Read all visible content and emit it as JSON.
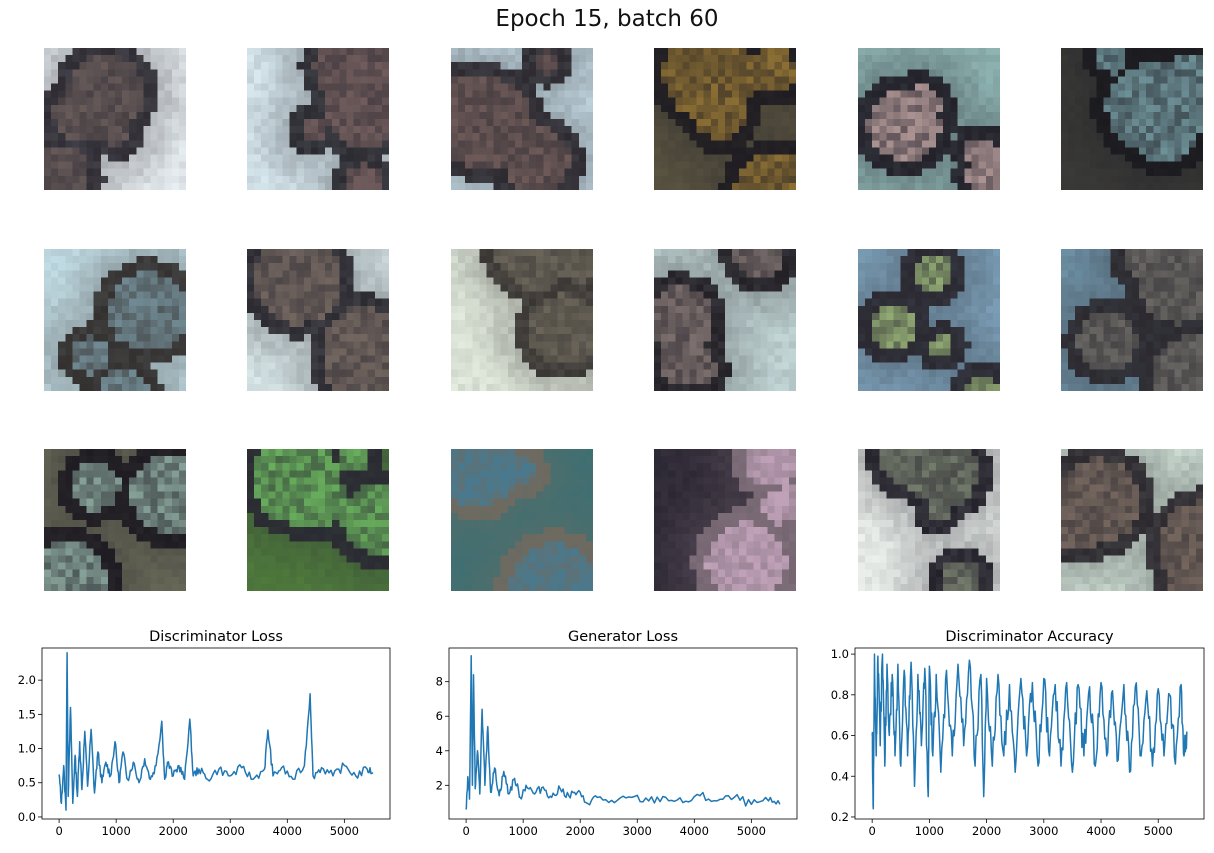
{
  "figure": {
    "title": "Epoch 15, batch 60"
  },
  "samples": {
    "rows": 3,
    "cols": 6,
    "tiles": [
      {
        "bg": "#e9f0f4",
        "fg": "#2e2b33",
        "accent": "#7a6a66"
      },
      {
        "bg": "#d7e8ee",
        "fg": "#2b2a31",
        "accent": "#8a6e6c"
      },
      {
        "bg": "#c9dfe9",
        "fg": "#2d2a30",
        "accent": "#836a66"
      },
      {
        "bg": "#5a5441",
        "fg": "#1f1d22",
        "accent": "#b08a3a"
      },
      {
        "bg": "#8fb5b3",
        "fg": "#23212a",
        "accent": "#d9b9b5"
      },
      {
        "bg": "#3a3a38",
        "fg": "#1b1a1f",
        "accent": "#8ab8c0"
      },
      {
        "bg": "#c2dde5",
        "fg": "#33302f",
        "accent": "#86a8b4"
      },
      {
        "bg": "#dbeaec",
        "fg": "#2c2a31",
        "accent": "#8a7a6f"
      },
      {
        "bg": "#e3ecdf",
        "fg": "#3a3633",
        "accent": "#7a7466"
      },
      {
        "bg": "#c4d8d8",
        "fg": "#232026",
        "accent": "#9a8a86"
      },
      {
        "bg": "#7ea3bc",
        "fg": "#2a2830",
        "accent": "#b4d68a"
      },
      {
        "bg": "#6f93a8",
        "fg": "#2c2a2f",
        "accent": "#7d7a74"
      },
      {
        "bg": "#6b6b5a",
        "fg": "#1e1c22",
        "accent": "#a9cdbf"
      },
      {
        "bg": "#4f7c3c",
        "fg": "#2a2a33",
        "accent": "#7cd96a"
      },
      {
        "bg": "#3e6f72",
        "fg": "#6f6a60",
        "accent": "#3a7fa0"
      },
      {
        "bg": "#2b2733",
        "fg": "#7d6d78",
        "accent": "#d7b3cf"
      },
      {
        "bg": "#eef3ef",
        "fg": "#23212a",
        "accent": "#8f9a82"
      },
      {
        "bg": "#cfe0d6",
        "fg": "#2d2a2f",
        "accent": "#8d7b6e"
      }
    ]
  },
  "chart_data": [
    {
      "type": "line",
      "title": "Discriminator Loss",
      "xlim": [
        -300,
        5800
      ],
      "ylim": [
        -0.03,
        2.47
      ],
      "xticks": [
        0,
        1000,
        2000,
        3000,
        4000,
        5000
      ],
      "yticks": [
        0.0,
        0.5,
        1.0,
        1.5,
        2.0
      ],
      "ytick_labels": [
        "0.0",
        "0.5",
        "1.0",
        "1.5",
        "2.0"
      ],
      "color": "#1f77b4",
      "x": [
        0,
        40,
        80,
        120,
        140,
        160,
        200,
        240,
        280,
        320,
        360,
        400,
        450,
        500,
        560,
        620,
        680,
        750,
        820,
        900,
        980,
        1050,
        1120,
        1200,
        1300,
        1400,
        1500,
        1600,
        1700,
        1800,
        1850,
        1900,
        2000,
        2100,
        2200,
        2290,
        2350,
        2450,
        2600,
        2800,
        3000,
        3200,
        3400,
        3600,
        3660,
        3750,
        3900,
        4100,
        4300,
        4400,
        4450,
        4600,
        4800,
        5000,
        5200,
        5400,
        5500
      ],
      "y": [
        0.62,
        0.2,
        0.75,
        0.1,
        2.4,
        0.3,
        1.6,
        0.2,
        0.9,
        0.3,
        1.1,
        0.4,
        1.25,
        0.45,
        1.28,
        0.35,
        0.95,
        0.5,
        0.8,
        0.6,
        1.1,
        0.5,
        0.95,
        0.55,
        0.8,
        0.5,
        0.85,
        0.55,
        0.75,
        1.4,
        0.55,
        0.8,
        0.6,
        0.75,
        0.55,
        1.43,
        0.6,
        0.7,
        0.55,
        0.7,
        0.6,
        0.72,
        0.55,
        0.7,
        1.27,
        0.6,
        0.72,
        0.55,
        0.75,
        1.8,
        0.6,
        0.72,
        0.6,
        0.75,
        0.6,
        0.7,
        0.65
      ]
    },
    {
      "type": "line",
      "title": "Generator Loss",
      "xlim": [
        -300,
        5800
      ],
      "ylim": [
        0.05,
        9.95
      ],
      "xticks": [
        0,
        1000,
        2000,
        3000,
        4000,
        5000
      ],
      "yticks": [
        2,
        4,
        6,
        8
      ],
      "ytick_labels": [
        "2",
        "4",
        "6",
        "8"
      ],
      "color": "#1f77b4",
      "x": [
        0,
        30,
        60,
        90,
        110,
        130,
        160,
        200,
        240,
        280,
        330,
        380,
        430,
        500,
        580,
        660,
        750,
        850,
        950,
        1050,
        1200,
        1350,
        1500,
        1650,
        1800,
        1950,
        2100,
        2300,
        2600,
        2900,
        3200,
        3500,
        3800,
        4100,
        4400,
        4700,
        5000,
        5300,
        5500
      ],
      "y": [
        0.6,
        2.5,
        1.2,
        9.5,
        2.0,
        8.4,
        1.8,
        4.0,
        1.5,
        6.4,
        2.0,
        5.4,
        1.6,
        3.0,
        1.4,
        2.8,
        1.5,
        2.4,
        1.3,
        2.0,
        1.5,
        1.9,
        1.3,
        1.8,
        1.4,
        1.6,
        1.0,
        1.3,
        1.0,
        1.3,
        1.1,
        1.3,
        1.0,
        1.4,
        1.1,
        1.3,
        0.9,
        1.1,
        0.9
      ]
    },
    {
      "type": "line",
      "title": "Discriminator Accuracy",
      "xlim": [
        -300,
        5800
      ],
      "ylim": [
        0.19,
        1.03
      ],
      "xticks": [
        0,
        1000,
        2000,
        3000,
        4000,
        5000
      ],
      "yticks": [
        0.2,
        0.4,
        0.6,
        0.8,
        1.0
      ],
      "ytick_labels": [
        "0.2",
        "0.4",
        "0.6",
        "0.8",
        "1.0"
      ],
      "color": "#1f77b4",
      "x": [
        0,
        20,
        40,
        70,
        100,
        140,
        180,
        220,
        260,
        300,
        350,
        400,
        450,
        500,
        560,
        620,
        680,
        740,
        800,
        860,
        920,
        980,
        1000,
        1060,
        1120,
        1200,
        1300,
        1400,
        1500,
        1600,
        1700,
        1800,
        1900,
        1950,
        2000,
        2100,
        2200,
        2300,
        2400,
        2500,
        2600,
        2700,
        2800,
        2900,
        3000,
        3100,
        3200,
        3300,
        3400,
        3500,
        3600,
        3700,
        3800,
        3900,
        4000,
        4100,
        4200,
        4300,
        4400,
        4500,
        4600,
        4700,
        4800,
        4900,
        5000,
        5100,
        5200,
        5300,
        5400,
        5450,
        5500
      ],
      "y": [
        0.6,
        0.24,
        1.0,
        0.5,
        0.99,
        0.55,
        1.0,
        0.45,
        0.95,
        0.6,
        0.9,
        0.5,
        0.95,
        0.45,
        0.92,
        0.5,
        0.96,
        0.35,
        0.9,
        0.55,
        0.93,
        0.3,
        0.94,
        0.5,
        0.9,
        0.42,
        0.92,
        0.5,
        0.95,
        0.55,
        0.97,
        0.45,
        0.9,
        0.3,
        0.88,
        0.45,
        0.9,
        0.5,
        0.85,
        0.42,
        0.88,
        0.5,
        0.86,
        0.45,
        0.88,
        0.5,
        0.85,
        0.45,
        0.86,
        0.42,
        0.85,
        0.5,
        0.84,
        0.45,
        0.86,
        0.5,
        0.82,
        0.48,
        0.85,
        0.42,
        0.84,
        0.5,
        0.82,
        0.45,
        0.83,
        0.5,
        0.8,
        0.46,
        0.85,
        0.5,
        0.62
      ]
    }
  ]
}
